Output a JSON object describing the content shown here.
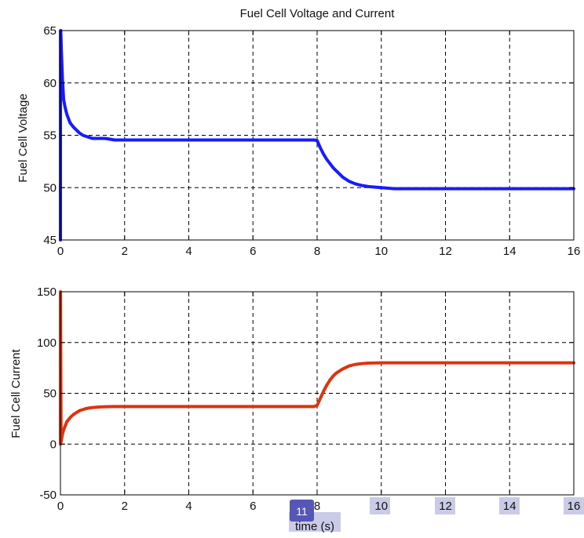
{
  "chart_data": [
    {
      "type": "line",
      "title": "Fuel Cell Voltage and Current",
      "xlabel": "",
      "ylabel": "Fuel Cell Voltage",
      "xlim": [
        0,
        16
      ],
      "ylim": [
        45,
        65
      ],
      "xticks": [
        0,
        2,
        4,
        6,
        8,
        10,
        12,
        14,
        16
      ],
      "yticks": [
        45,
        50,
        55,
        60,
        65
      ],
      "grid": true,
      "color": "#1a1aff",
      "series": [
        {
          "x": [
            0,
            0.001,
            0.01,
            0.03,
            0.06,
            0.1,
            0.15,
            0.2,
            0.3,
            0.4,
            0.5,
            0.6,
            0.7,
            0.8,
            0.9,
            1.0,
            1.2,
            1.4,
            1.6,
            1.7,
            2,
            3,
            4,
            5,
            6,
            7,
            7.9,
            8.0,
            8.1,
            8.2,
            8.3,
            8.4,
            8.5,
            8.6,
            8.8,
            9.0,
            9.2,
            9.4,
            9.6,
            9.8,
            10.0,
            10.4,
            11,
            12,
            13,
            14,
            15,
            16
          ],
          "y": [
            45,
            65,
            65,
            63,
            60.5,
            58.4,
            57.6,
            57.0,
            56.2,
            55.8,
            55.5,
            55.2,
            55.0,
            54.9,
            54.8,
            54.7,
            54.7,
            54.7,
            54.6,
            54.55,
            54.55,
            54.55,
            54.55,
            54.55,
            54.55,
            54.55,
            54.55,
            54.5,
            53.8,
            53.2,
            52.7,
            52.3,
            51.9,
            51.6,
            51.0,
            50.6,
            50.35,
            50.2,
            50.1,
            50.05,
            50.0,
            49.9,
            49.9,
            49.9,
            49.9,
            49.9,
            49.9,
            49.9
          ]
        }
      ]
    },
    {
      "type": "line",
      "title": "",
      "xlabel": "time (s)",
      "ylabel": "Fuel Cell Current",
      "xlim": [
        0,
        16
      ],
      "ylim": [
        -50,
        150
      ],
      "xticks": [
        0,
        2,
        4,
        6,
        8,
        10,
        12,
        14,
        16
      ],
      "yticks": [
        -50,
        0,
        50,
        100,
        150
      ],
      "grid": true,
      "color": "#dd3311",
      "series": [
        {
          "x": [
            0,
            0.001,
            0.02,
            0.05,
            0.1,
            0.15,
            0.2,
            0.3,
            0.4,
            0.5,
            0.6,
            0.7,
            0.8,
            0.9,
            1.0,
            1.2,
            1.4,
            1.6,
            2,
            3,
            4,
            5,
            6,
            7,
            7.9,
            8.0,
            8.1,
            8.2,
            8.3,
            8.4,
            8.5,
            8.6,
            8.8,
            9.0,
            9.2,
            9.4,
            9.6,
            10,
            11,
            12,
            13,
            14,
            15,
            16
          ],
          "y": [
            0,
            150,
            2,
            8,
            14,
            18,
            22,
            26,
            29,
            31,
            33,
            34,
            35,
            35.5,
            36,
            36.5,
            36.8,
            37,
            37,
            37,
            37,
            37,
            37,
            37,
            37,
            38,
            45,
            52,
            58,
            63,
            67,
            70,
            74,
            77,
            78.5,
            79.3,
            79.7,
            80,
            80,
            80,
            80,
            80,
            80,
            80
          ]
        }
      ]
    }
  ],
  "overlay": {
    "badge": "11"
  }
}
